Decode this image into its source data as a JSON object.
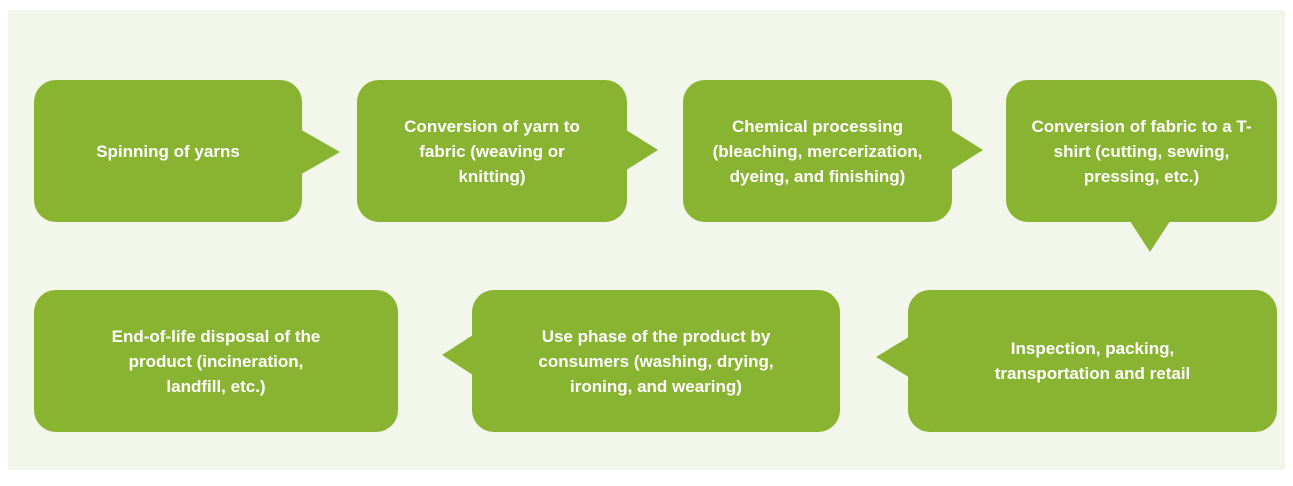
{
  "nodes": [
    {
      "label": "Spinning of yarns"
    },
    {
      "label": "Conversion of yarn to fabric (weaving or knitting)"
    },
    {
      "label": "Chemical processing (bleaching, mercerization, dyeing, and finishing)"
    },
    {
      "label": "Conversion of fabric to a T-shirt (cutting, sewing, pressing, etc.)"
    },
    {
      "label": "Inspection, packing, transportation and retail"
    },
    {
      "label": "Use phase of the product by consumers (washing, drying, ironing, and wearing)"
    },
    {
      "label": "End-of-life disposal of the product (incineration, landfill, etc.)"
    }
  ]
}
